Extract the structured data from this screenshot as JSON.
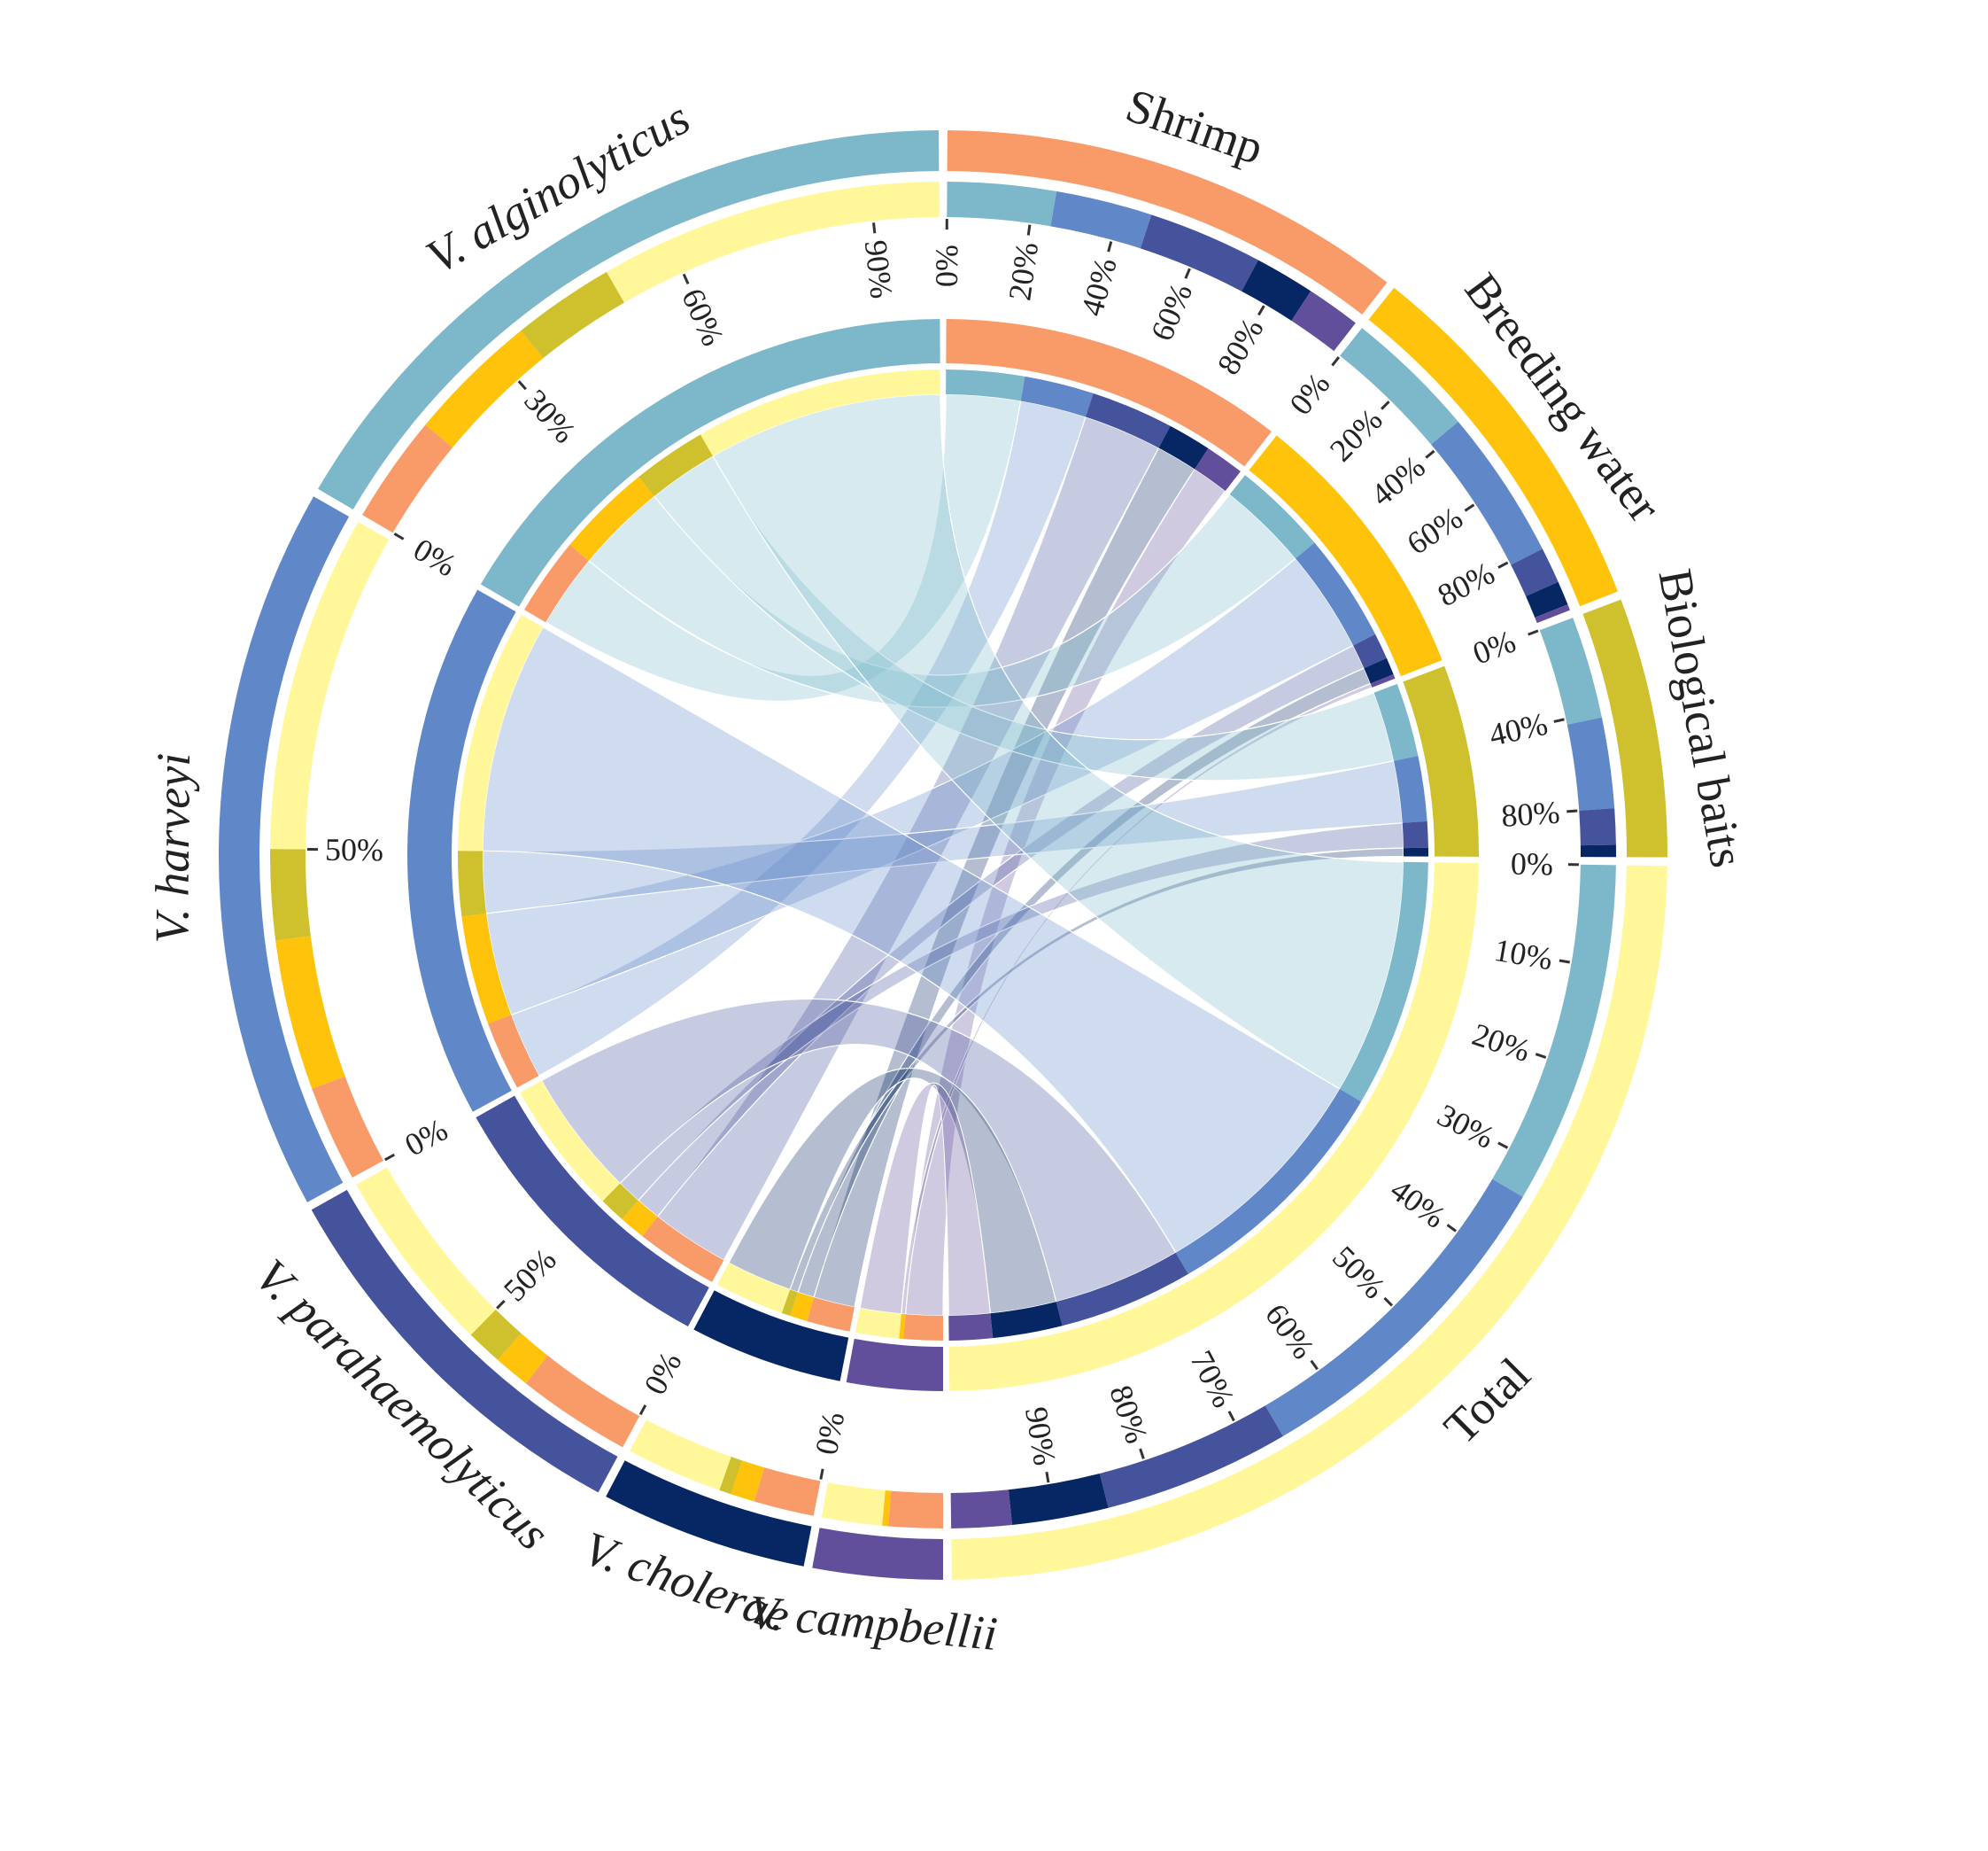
{
  "chart_data": {
    "type": "chord",
    "colors": {
      "Shrimp": "#F99B69",
      "Breeding water": "#FEC30A",
      "Biological baits": "#CFC12D",
      "Total": "#FFF79A",
      "V. alginolyticus": "#7CB8C9",
      "V. harveyi": "#6088C8",
      "V. parahaemolyticus": "#45539C",
      "V. cholerae": "#072764",
      "V. campbellii": "#624F9B"
    },
    "sources": [
      {
        "name": "Shrimp",
        "italic": false
      },
      {
        "name": "Breeding water",
        "italic": false
      },
      {
        "name": "Biological baits",
        "italic": false
      },
      {
        "name": "Total",
        "italic": false
      }
    ],
    "targets": [
      {
        "name": "V. alginolyticus",
        "italic": true
      },
      {
        "name": "V. harveyi",
        "italic": true
      },
      {
        "name": "V. parahaemolyticus",
        "italic": true
      },
      {
        "name": "V. cholerae",
        "italic": true
      },
      {
        "name": "V. campbellii",
        "italic": true
      }
    ],
    "order": [
      "Shrimp",
      "Breeding water",
      "Biological baits",
      "Total",
      "V. campbellii",
      "V. cholerae",
      "V. parahaemolyticus",
      "V. harveyi",
      "V. alginolyticus"
    ],
    "matrix_source_to_target": {
      "Shrimp": {
        "V. alginolyticus": 18,
        "V. harveyi": 16,
        "V. parahaemolyticus": 19,
        "V. cholerae": 10,
        "V. campbellii": 9
      },
      "Breeding water": {
        "V. alginolyticus": 22,
        "V. harveyi": 25,
        "V. parahaemolyticus": 6,
        "V. cholerae": 4,
        "V. campbellii": 1
      },
      "Biological baits": {
        "V. alginolyticus": 17,
        "V. harveyi": 15,
        "V. parahaemolyticus": 6,
        "V. cholerae": 2,
        "V. campbellii": 0
      },
      "Total": {
        "V. alginolyticus": 57,
        "V. harveyi": 56,
        "V. parahaemolyticus": 31,
        "V. cholerae": 16,
        "V. campbellii": 10
      }
    },
    "tick_labels": {
      "Shrimp": [
        "0%",
        "20%",
        "40%",
        "60%",
        "80%"
      ],
      "Breeding water": [
        "0%",
        "20%",
        "40%",
        "60%",
        "80%"
      ],
      "Biological baits": [
        "0%",
        "40%",
        "80%"
      ],
      "Total": [
        "0%",
        "10%",
        "20%",
        "30%",
        "40%",
        "50%",
        "60%",
        "70%",
        "80%",
        "90%"
      ],
      "V. campbellii": [],
      "V. cholerae": [
        "0%"
      ],
      "V. parahaemolyticus": [
        "0%",
        "50%"
      ],
      "V. harveyi": [
        "0%",
        "50%"
      ],
      "V. alginolyticus": [
        "0%",
        "30%",
        "60%",
        "90%"
      ]
    }
  }
}
